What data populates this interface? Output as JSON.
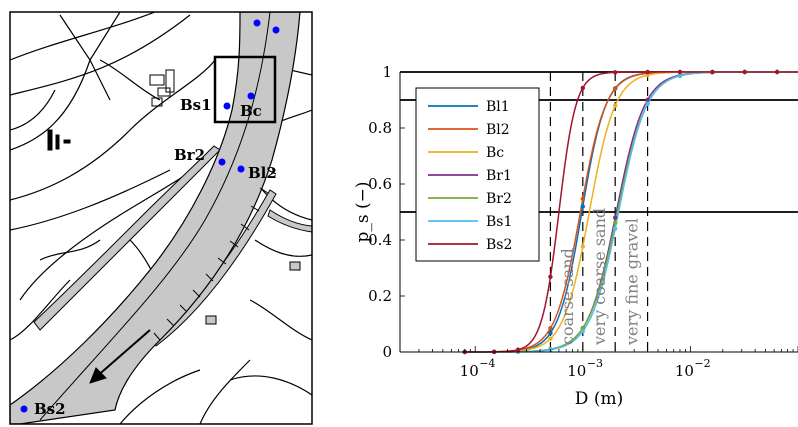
{
  "map": {
    "sites": [
      {
        "id": "Bl1",
        "label": ""
      },
      {
        "id": "Bl2",
        "label": "Bl2"
      },
      {
        "id": "Bc",
        "label": "Bc"
      },
      {
        "id": "Br1",
        "label": ""
      },
      {
        "id": "Br2",
        "label": "Br2"
      },
      {
        "id": "Bs1",
        "label": "Bs1"
      },
      {
        "id": "Bs2",
        "label": "Bs2"
      }
    ],
    "marker_color": "#0000ff",
    "river_color": "#c8c8c8"
  },
  "chart_data": {
    "type": "line",
    "x_scale": "log",
    "xlim": [
      2e-05,
      0.1
    ],
    "ylim": [
      0,
      1
    ],
    "xlabel": "D (m)",
    "ylabel": "p_s (−)",
    "x_ticks": [
      {
        "value": 0.0001,
        "label": "10",
        "exp": "−4"
      },
      {
        "value": 0.001,
        "label": "10",
        "exp": "−3"
      },
      {
        "value": 0.01,
        "label": "10",
        "exp": "−2"
      }
    ],
    "y_ticks": [
      0,
      0.2,
      0.4,
      0.6,
      0.8,
      1
    ],
    "y_tick_labels": [
      "0",
      "0.2",
      "0.4",
      "0.6",
      "0.8",
      "1"
    ],
    "horizontal_lines": [
      0.5,
      0.9,
      1
    ],
    "class_boundaries": [
      0.0005,
      0.001,
      0.002,
      0.004
    ],
    "class_labels": [
      {
        "text": "coarse sand",
        "x": 0.00071
      },
      {
        "text": "very coarse sand",
        "x": 0.00141
      },
      {
        "text": "very fine gravel",
        "x": 0.00283
      }
    ],
    "legend_position": "left-center",
    "series": [
      {
        "name": "Bl1",
        "color": "#0072bd",
        "d50": 0.00098,
        "k": 3.9
      },
      {
        "name": "Bl2",
        "color": "#d95319",
        "d50": 0.00095,
        "k": 3.7
      },
      {
        "name": "Bc",
        "color": "#edb120",
        "d50": 0.00115,
        "k": 3.6
      },
      {
        "name": "Br1",
        "color": "#7e2f8e",
        "d50": 0.00205,
        "k": 3.3
      },
      {
        "name": "Br2",
        "color": "#77ac30",
        "d50": 0.0021,
        "k": 3.2
      },
      {
        "name": "Bs1",
        "color": "#4dbeee",
        "d50": 0.00215,
        "k": 3.3
      },
      {
        "name": "Bs2",
        "color": "#a2142f",
        "d50": 0.0006,
        "k": 5.5
      }
    ],
    "sample_points": [
      8e-05,
      0.00015,
      0.00025,
      0.0005,
      0.001,
      0.002,
      0.004,
      0.008,
      0.016,
      0.032,
      0.064
    ]
  }
}
